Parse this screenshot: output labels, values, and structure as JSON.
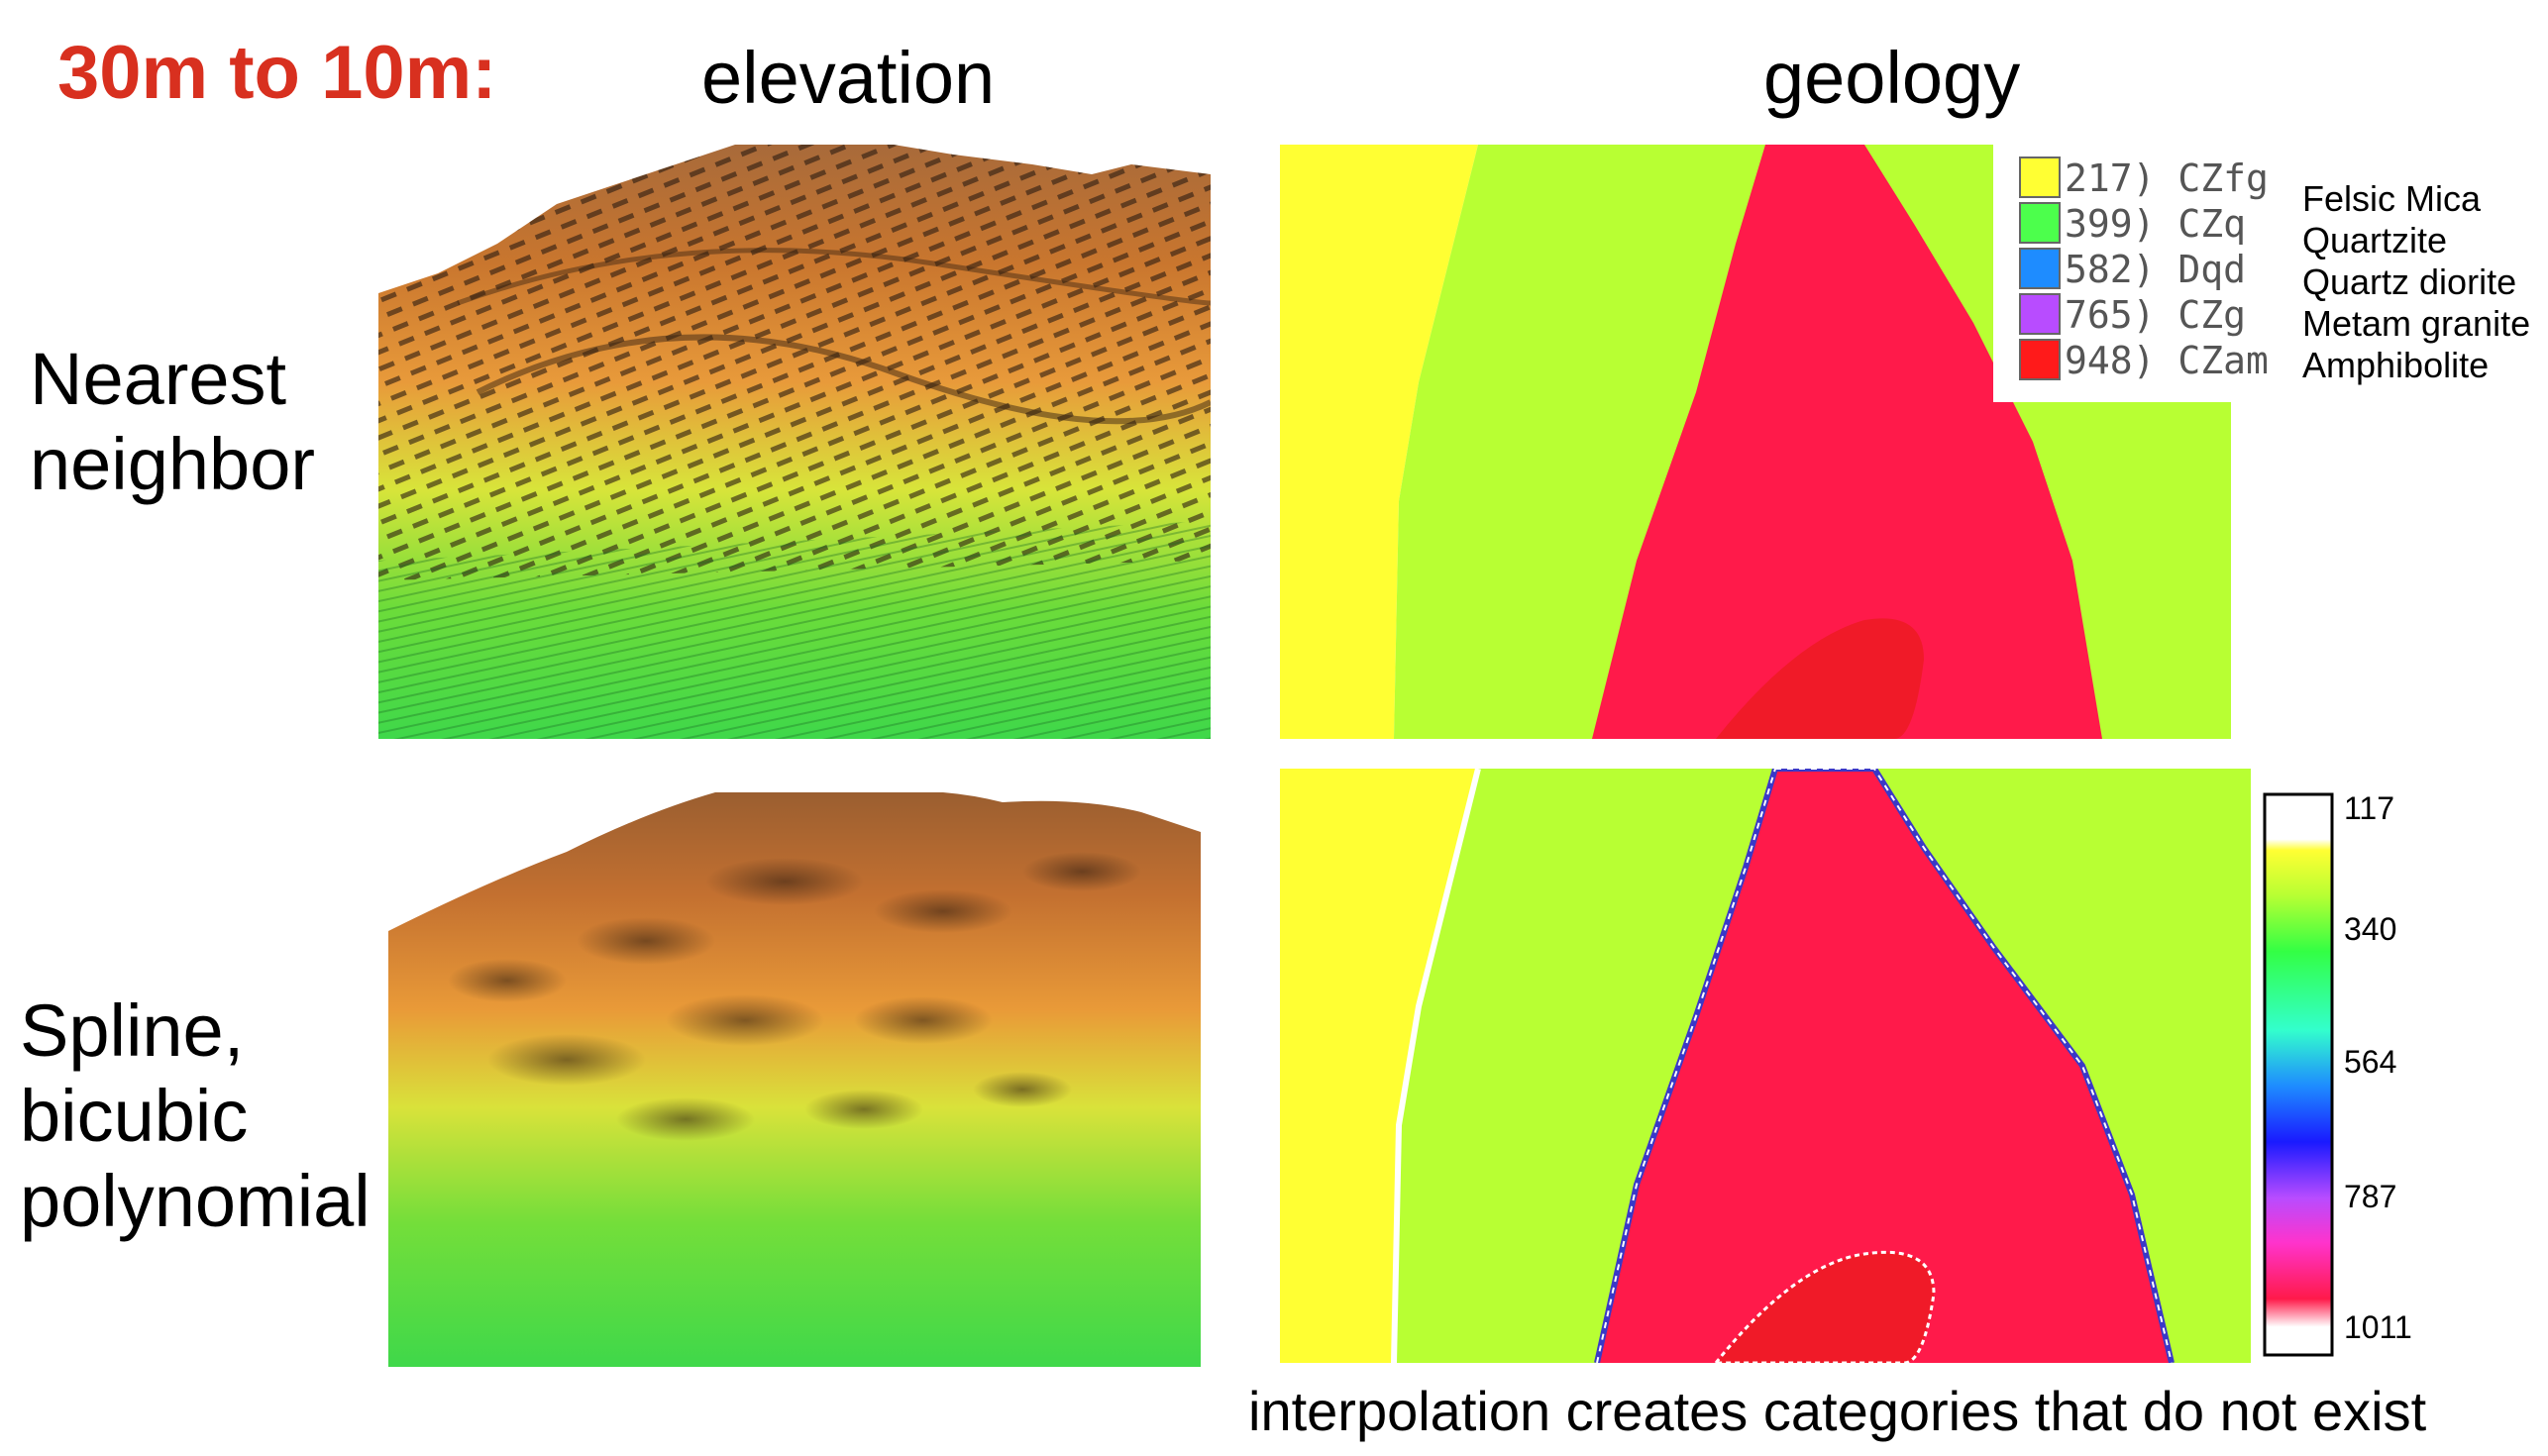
{
  "title": "30m to 10m:",
  "columns": {
    "elevation": "elevation",
    "geology": "geology"
  },
  "rows": {
    "nearest": [
      "Nearest",
      "neighbor"
    ],
    "spline": [
      "Spline,",
      "bicubic",
      "polynomial"
    ]
  },
  "legend": [
    {
      "code": "217) CZfg",
      "name": "Felsic Mica",
      "color": "#ffff33"
    },
    {
      "code": "399) CZq",
      "name": "Quartzite",
      "color": "#4cff4c"
    },
    {
      "code": "582) Dqd",
      "name": "Quartz diorite",
      "color": "#1e8cff"
    },
    {
      "code": "765) CZg",
      "name": "Metam granite",
      "color": "#b84cff"
    },
    {
      "code": "948) CZam",
      "name": "Amphibolite",
      "color": "#ff1a1a"
    }
  ],
  "colorbar": {
    "ticks": [
      "117",
      "340",
      "564",
      "787",
      "1011"
    ]
  },
  "footer": "interpolation creates categories that do not exist",
  "colors": {
    "felsic": "#ffff33",
    "quartzite": "#b8ff33",
    "amphibolite": "#ff1a4a",
    "core": "#f01a28"
  }
}
